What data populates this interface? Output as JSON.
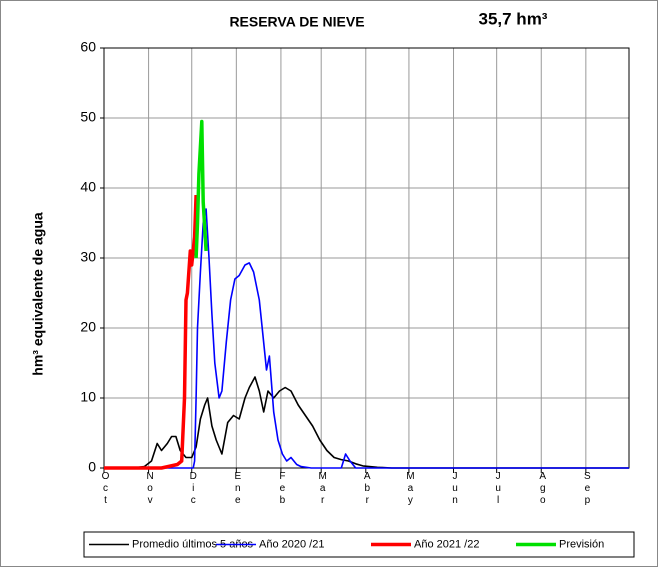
{
  "chart_data": {
    "type": "line",
    "title": "RESERVA DE NIEVE",
    "annotation": "35,7 hm³",
    "y_label": "hm³ equivalente de agua",
    "xlim": [
      0,
      365
    ],
    "xticks": [
      {
        "value": 0,
        "label": "Oct"
      },
      {
        "value": 31,
        "label": "Nov"
      },
      {
        "value": 61,
        "label": "Dic"
      },
      {
        "value": 92,
        "label": "Ene"
      },
      {
        "value": 123,
        "label": "Feb"
      },
      {
        "value": 151,
        "label": "Mar"
      },
      {
        "value": 182,
        "label": "Abr"
      },
      {
        "value": 212,
        "label": "May"
      },
      {
        "value": 243,
        "label": "Jun"
      },
      {
        "value": 273,
        "label": "Jul"
      },
      {
        "value": 304,
        "label": "Ago"
      },
      {
        "value": 335,
        "label": "Sep"
      }
    ],
    "ylim": [
      0,
      60
    ],
    "yticks": [
      0,
      10,
      20,
      30,
      40,
      50,
      60
    ],
    "grid": true,
    "legend": "bottom",
    "series": [
      {
        "name": "Promedio últimos 5 años",
        "color": "#000000",
        "x": [
          0,
          10,
          20,
          28,
          33,
          37,
          40,
          44,
          47,
          50,
          53,
          57,
          61,
          64,
          67,
          70,
          72,
          75,
          78,
          82,
          86,
          90,
          94,
          98,
          101,
          105,
          108,
          111,
          114,
          118,
          122,
          126,
          130,
          135,
          140,
          145,
          150,
          155,
          160,
          165,
          170,
          175,
          180,
          190,
          200,
          250,
          300,
          365
        ],
        "values": [
          0,
          0,
          0,
          0.2,
          1,
          3.5,
          2.5,
          3.5,
          4.5,
          4.5,
          2.5,
          1.5,
          1.5,
          3,
          7,
          9,
          10,
          6,
          4,
          2,
          6.5,
          7.5,
          7,
          10,
          11.5,
          13,
          11,
          8,
          11,
          10,
          11,
          11.5,
          11,
          9,
          7.5,
          6,
          4,
          2.5,
          1.5,
          1.2,
          1,
          0.6,
          0.3,
          0.1,
          0,
          0,
          0,
          0
        ]
      },
      {
        "name": "Año 2020 /21",
        "color": "#0000ff",
        "x": [
          0,
          30,
          62,
          63,
          64,
          65,
          67,
          69,
          71,
          73,
          75,
          77,
          80,
          82,
          85,
          88,
          91,
          94,
          98,
          101,
          104,
          108,
          110,
          113,
          115,
          118,
          121,
          124,
          127,
          130,
          134,
          137,
          144,
          165,
          168,
          171,
          175,
          200,
          250,
          300,
          365
        ],
        "values": [
          0,
          0,
          0,
          1,
          10,
          20,
          28,
          35,
          37,
          30,
          22,
          15,
          10,
          11,
          18,
          24,
          27,
          27.5,
          29,
          29.3,
          28,
          24,
          20,
          14,
          16,
          8,
          4,
          2,
          1,
          1.5,
          0.5,
          0.2,
          0,
          0,
          2,
          1,
          0,
          0,
          0,
          0,
          0
        ]
      },
      {
        "name": "Año 2021 /22",
        "color": "#ff0000",
        "x": [
          0,
          20,
          40,
          51,
          54,
          56,
          57,
          58,
          60,
          61,
          63,
          64
        ],
        "values": [
          0,
          0,
          0,
          0.5,
          1,
          10,
          24,
          25,
          31,
          29,
          33,
          39
        ]
      },
      {
        "name": "Previsión",
        "color": "#00e000",
        "x": [
          64,
          65,
          66,
          68,
          69,
          71
        ],
        "values": [
          30,
          35,
          42,
          49.5,
          38,
          31
        ]
      }
    ]
  }
}
